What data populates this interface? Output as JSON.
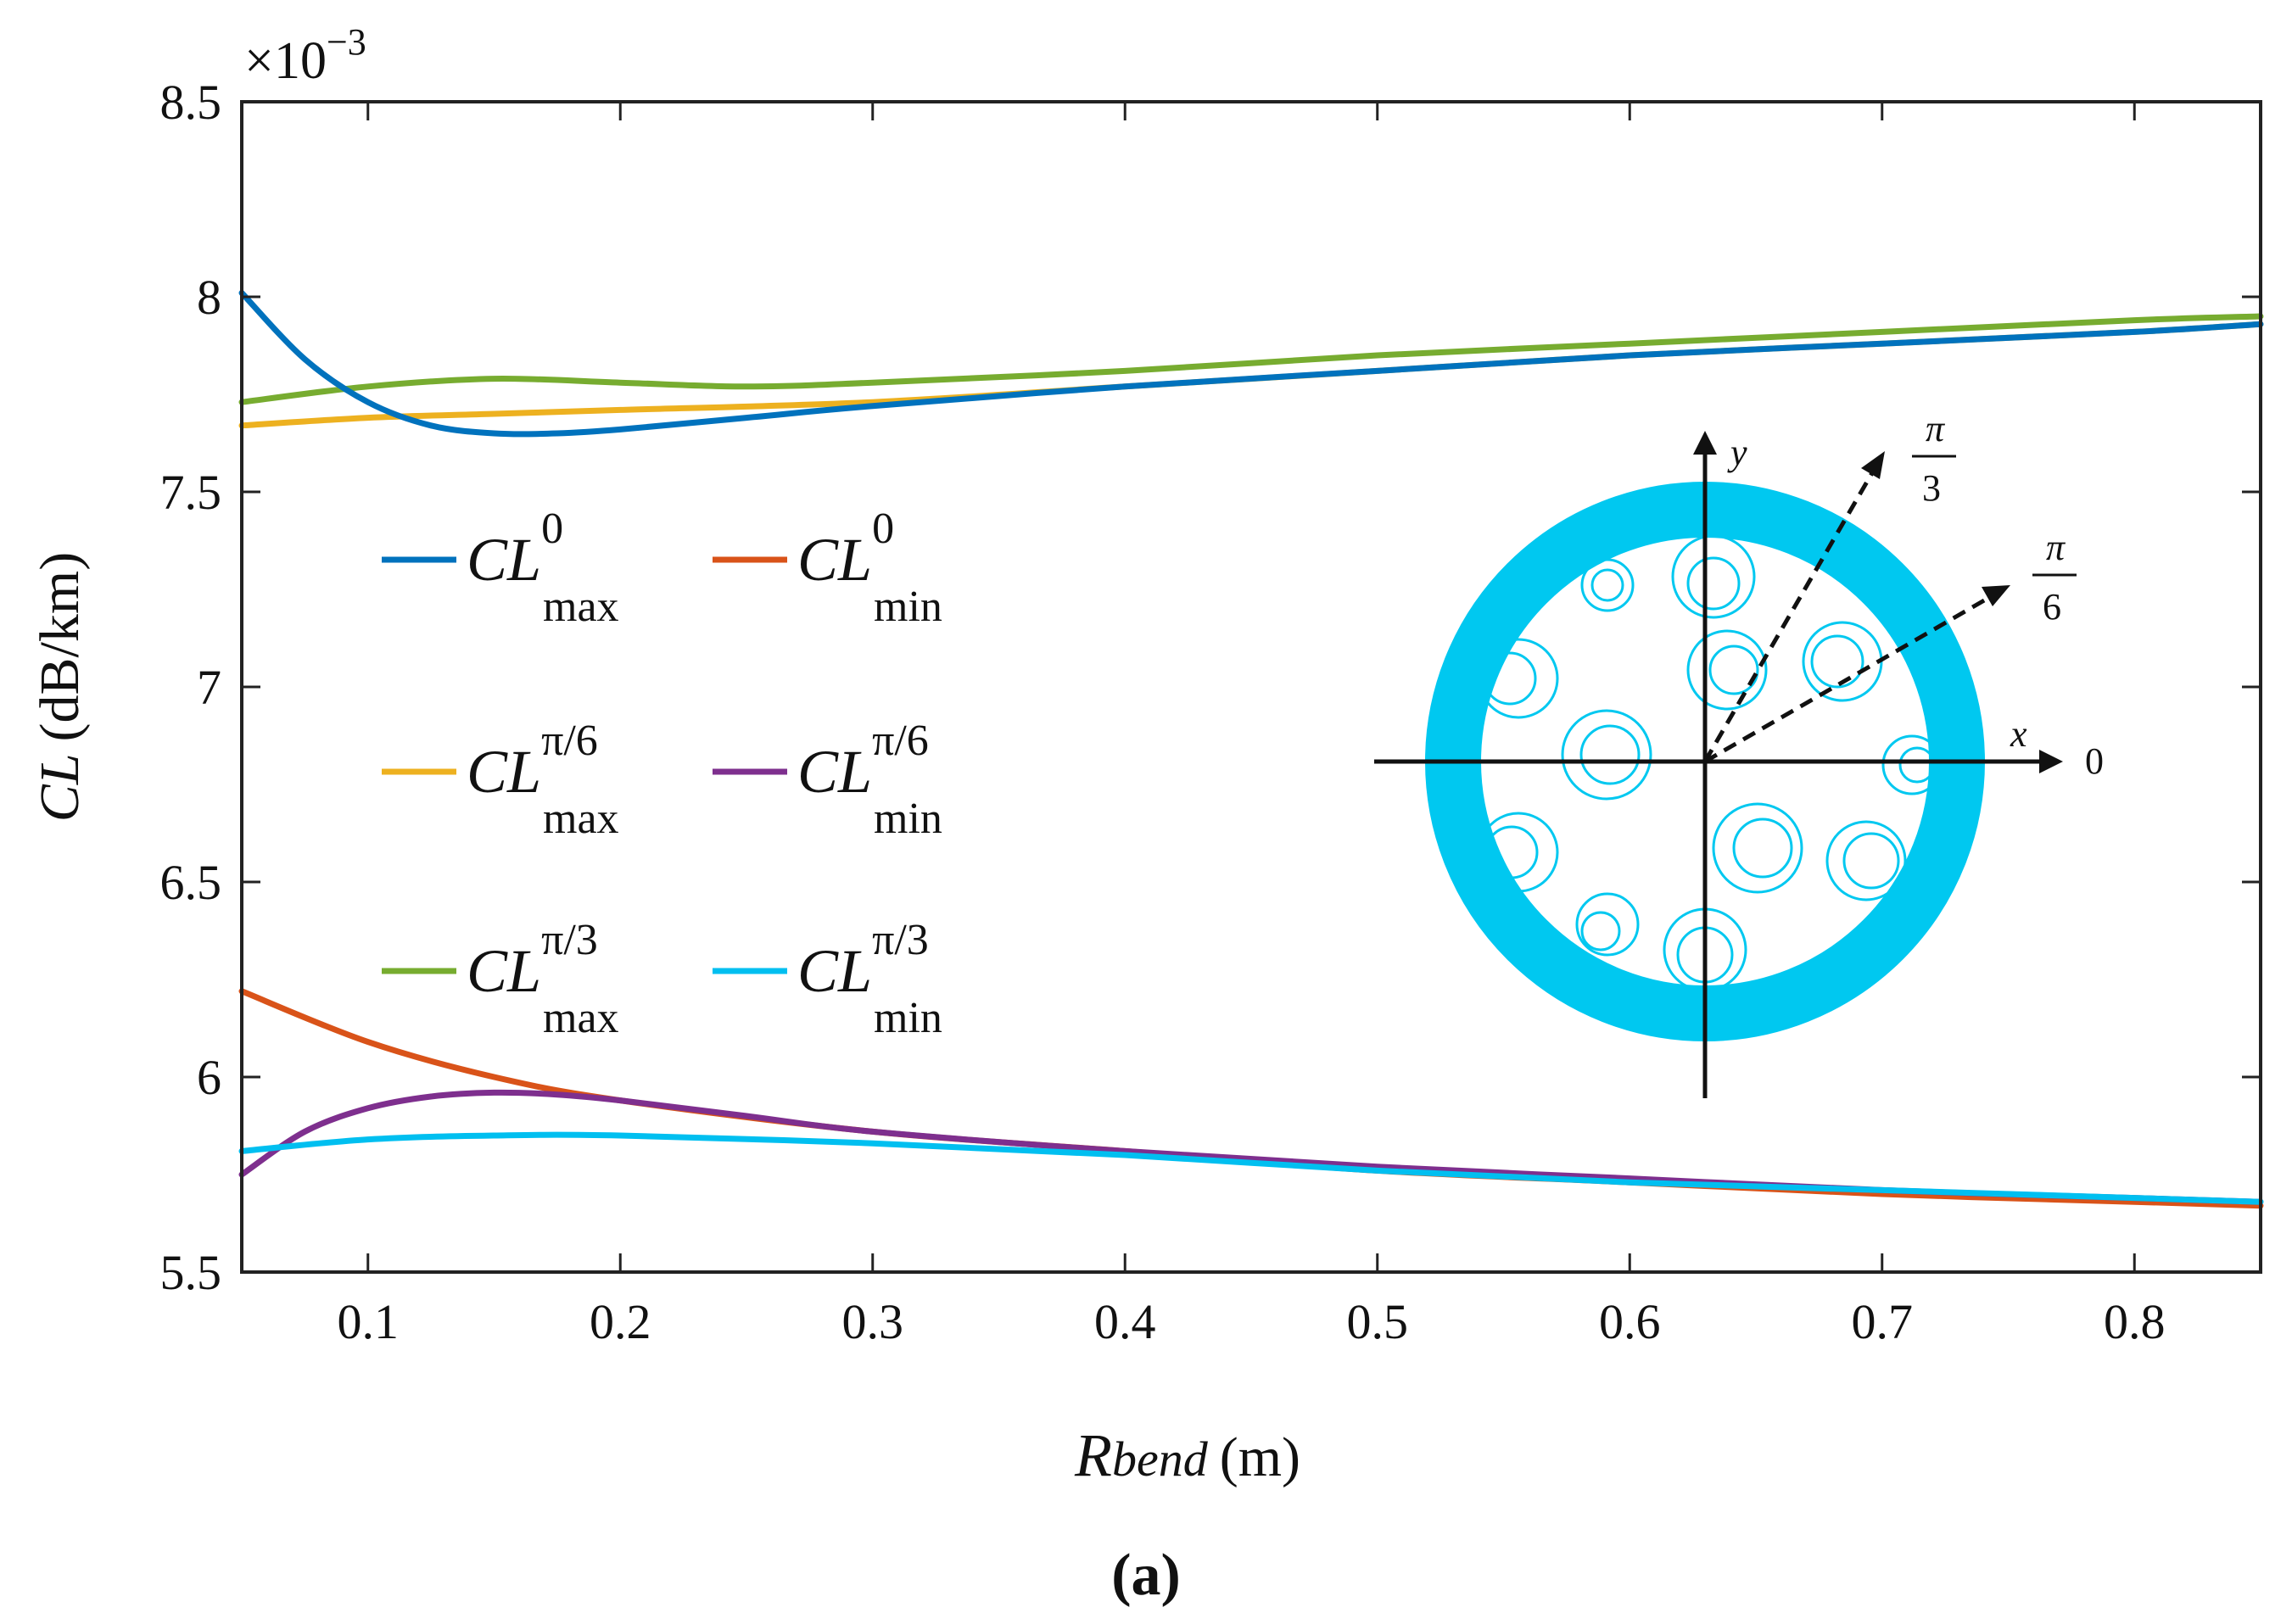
{
  "chart_data": {
    "type": "line",
    "title": "",
    "xlabel": {
      "main": "R",
      "sub": "bend",
      "unit": "(m)"
    },
    "ylabel": {
      "main": "CL",
      "unit": "(dB/km)"
    },
    "y_multiplier_label": {
      "base": "×10",
      "exponent": "−3"
    },
    "xlim": [
      0.05,
      0.85
    ],
    "ylim": [
      5.5,
      8.5
    ],
    "x_ticks": [
      0.1,
      0.2,
      0.3,
      0.4,
      0.5,
      0.6,
      0.7,
      0.8
    ],
    "x_tick_labels": [
      "0.1",
      "0.2",
      "0.3",
      "0.4",
      "0.5",
      "0.6",
      "0.7",
      "0.8"
    ],
    "y_ticks": [
      5.5,
      6,
      6.5,
      7,
      7.5,
      8,
      8.5
    ],
    "y_tick_labels": [
      "5.5",
      "6",
      "6.5",
      "7",
      "7.5",
      "8",
      "8.5"
    ],
    "grid": false,
    "legend_position": "left-center",
    "series": [
      {
        "name": "CL0max",
        "base": "CL",
        "sup": "0",
        "sub": "max",
        "color": "#0072BD",
        "x": [
          0.05,
          0.075,
          0.1,
          0.125,
          0.15,
          0.175,
          0.2,
          0.25,
          0.3,
          0.4,
          0.5,
          0.6,
          0.7,
          0.8,
          0.85
        ],
        "y": [
          8.01,
          7.84,
          7.73,
          7.67,
          7.65,
          7.65,
          7.66,
          7.69,
          7.72,
          7.77,
          7.81,
          7.85,
          7.88,
          7.91,
          7.93
        ]
      },
      {
        "name": "CL0min",
        "base": "CL",
        "sup": "0",
        "sub": "min",
        "color": "#D95319",
        "x": [
          0.05,
          0.1,
          0.15,
          0.2,
          0.3,
          0.4,
          0.5,
          0.6,
          0.7,
          0.8,
          0.85
        ],
        "y": [
          6.22,
          6.09,
          6.0,
          5.94,
          5.86,
          5.81,
          5.76,
          5.73,
          5.7,
          5.68,
          5.67
        ]
      },
      {
        "name": "CLpi6max",
        "base": "CL",
        "sup": "π/6",
        "sub": "max",
        "color": "#EDB120",
        "x": [
          0.05,
          0.1,
          0.15,
          0.2,
          0.3,
          0.4,
          0.5,
          0.6,
          0.7,
          0.8,
          0.85
        ],
        "y": [
          7.67,
          7.69,
          7.7,
          7.71,
          7.73,
          7.77,
          7.81,
          7.85,
          7.88,
          7.91,
          7.93
        ]
      },
      {
        "name": "CLpi6min",
        "base": "CL",
        "sup": "π/6",
        "sub": "min",
        "color": "#7E2F8E",
        "x": [
          0.05,
          0.075,
          0.1,
          0.125,
          0.15,
          0.175,
          0.2,
          0.25,
          0.3,
          0.4,
          0.5,
          0.6,
          0.7,
          0.8,
          0.85
        ],
        "y": [
          5.75,
          5.86,
          5.92,
          5.95,
          5.96,
          5.955,
          5.94,
          5.9,
          5.86,
          5.81,
          5.77,
          5.74,
          5.71,
          5.69,
          5.68
        ]
      },
      {
        "name": "CLpi3max",
        "base": "CL",
        "sup": "π/3",
        "sub": "max",
        "color": "#77AC30",
        "x": [
          0.05,
          0.1,
          0.15,
          0.2,
          0.25,
          0.3,
          0.4,
          0.5,
          0.6,
          0.7,
          0.8,
          0.85
        ],
        "y": [
          7.73,
          7.77,
          7.79,
          7.78,
          7.77,
          7.78,
          7.81,
          7.85,
          7.88,
          7.91,
          7.94,
          7.95
        ]
      },
      {
        "name": "CLpi3min",
        "base": "CL",
        "sup": "π/3",
        "sub": "min",
        "color": "#00BFF0",
        "x": [
          0.05,
          0.1,
          0.15,
          0.2,
          0.3,
          0.4,
          0.5,
          0.6,
          0.7,
          0.8,
          0.85
        ],
        "y": [
          5.81,
          5.84,
          5.85,
          5.85,
          5.83,
          5.8,
          5.76,
          5.73,
          5.71,
          5.69,
          5.68
        ]
      }
    ],
    "inset": {
      "description_labels": {
        "y_axis": "y",
        "x_axis": "x",
        "zero_angle": "0"
      },
      "angle_pi3": {
        "numerator": "π",
        "denominator": "3"
      },
      "angle_pi6": {
        "numerator": "π",
        "denominator": "6"
      },
      "ring_color": "#00C8F0"
    }
  },
  "caption": "(a)"
}
